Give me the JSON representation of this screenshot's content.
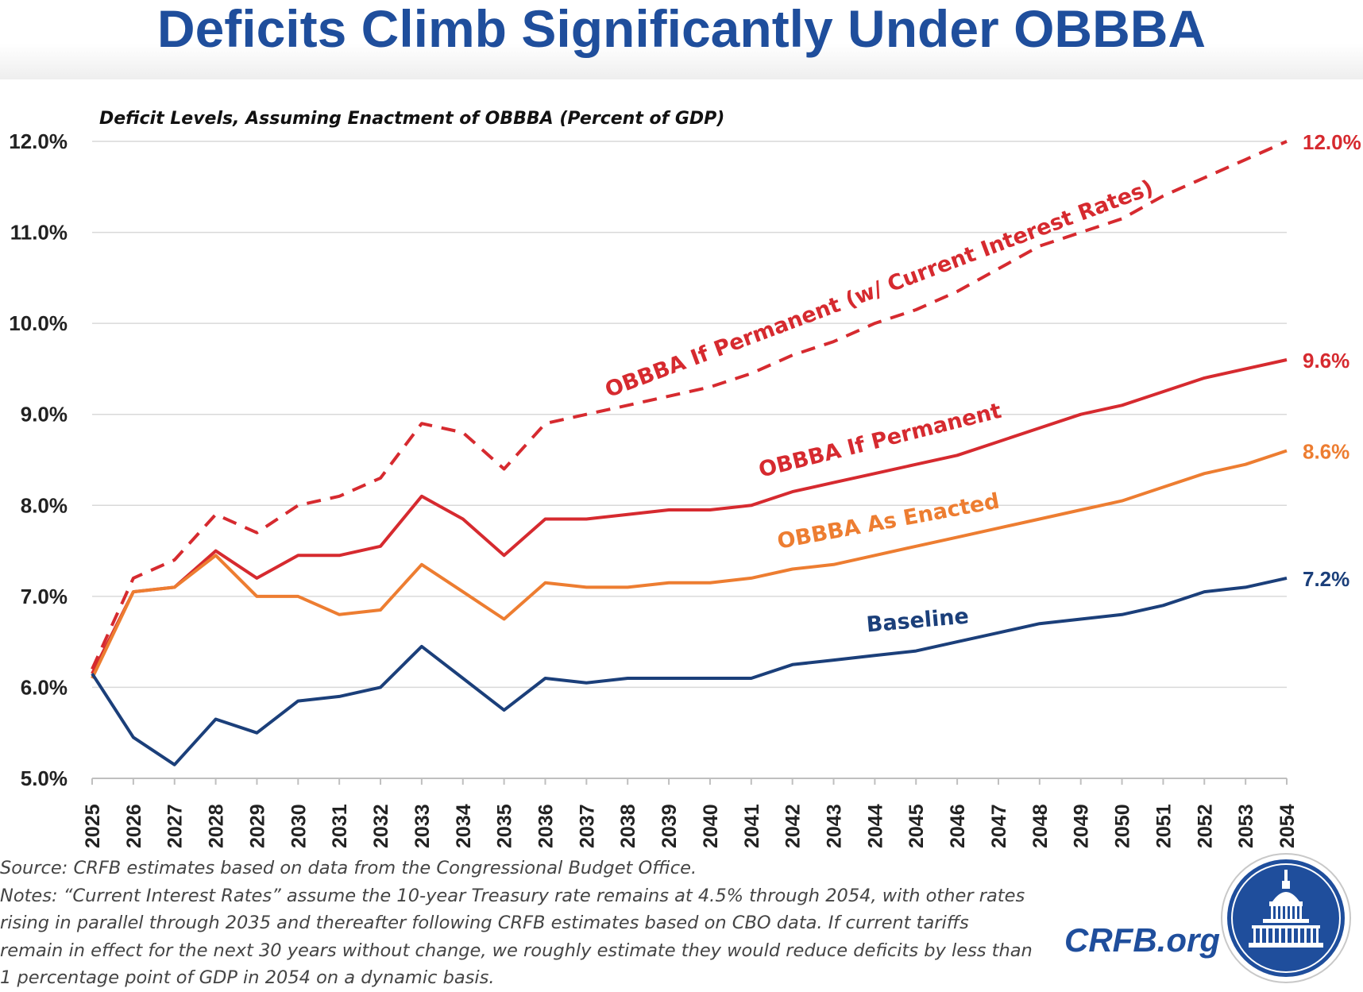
{
  "title": "Deficits Climb Significantly Under OBBBA",
  "chart_data": {
    "type": "line",
    "subtitle": "Deficit Levels, Assuming Enactment of OBBBA (Percent of GDP)",
    "x": [
      2025,
      2026,
      2027,
      2028,
      2029,
      2030,
      2031,
      2032,
      2033,
      2034,
      2035,
      2036,
      2037,
      2038,
      2039,
      2040,
      2041,
      2042,
      2043,
      2044,
      2045,
      2046,
      2047,
      2048,
      2049,
      2050,
      2051,
      2052,
      2053,
      2054
    ],
    "ylim": [
      5.0,
      12.0
    ],
    "yticks": [
      "5.0%",
      "6.0%",
      "7.0%",
      "8.0%",
      "9.0%",
      "10.0%",
      "11.0%",
      "12.0%"
    ],
    "grid": "horizontal",
    "series": [
      {
        "name": "OBBBA If Permanent (w/ Current Interest Rates)",
        "color": "#d62a2f",
        "style": "dashed",
        "end_label": "12.0%",
        "values": [
          6.2,
          7.2,
          7.4,
          7.9,
          7.7,
          8.0,
          8.1,
          8.3,
          8.9,
          8.8,
          8.4,
          8.9,
          9.0,
          9.1,
          9.2,
          9.3,
          9.45,
          9.65,
          9.8,
          10.0,
          10.15,
          10.35,
          10.6,
          10.85,
          11.0,
          11.15,
          11.4,
          11.6,
          11.8,
          12.0
        ]
      },
      {
        "name": "OBBBA If Permanent",
        "color": "#d62a2f",
        "style": "solid",
        "end_label": "9.6%",
        "values": [
          6.15,
          7.05,
          7.1,
          7.5,
          7.2,
          7.45,
          7.45,
          7.55,
          8.1,
          7.85,
          7.45,
          7.85,
          7.85,
          7.9,
          7.95,
          7.95,
          8.0,
          8.15,
          8.25,
          8.35,
          8.45,
          8.55,
          8.7,
          8.85,
          9.0,
          9.1,
          9.25,
          9.4,
          9.5,
          9.6
        ]
      },
      {
        "name": "OBBBA As Enacted",
        "color": "#ed7d31",
        "style": "solid",
        "end_label": "8.6%",
        "values": [
          6.1,
          7.05,
          7.1,
          7.45,
          7.0,
          7.0,
          6.8,
          6.85,
          7.35,
          7.05,
          6.75,
          7.15,
          7.1,
          7.1,
          7.15,
          7.15,
          7.2,
          7.3,
          7.35,
          7.45,
          7.55,
          7.65,
          7.75,
          7.85,
          7.95,
          8.05,
          8.2,
          8.35,
          8.45,
          8.6
        ]
      },
      {
        "name": "Baseline",
        "color": "#1b3f7a",
        "style": "solid",
        "end_label": "7.2%",
        "values": [
          6.15,
          5.45,
          5.15,
          5.65,
          5.5,
          5.85,
          5.9,
          6.0,
          6.45,
          6.1,
          5.75,
          6.1,
          6.05,
          6.1,
          6.1,
          6.1,
          6.1,
          6.25,
          6.3,
          6.35,
          6.4,
          6.5,
          6.6,
          6.7,
          6.75,
          6.8,
          6.9,
          7.05,
          7.1,
          7.2
        ]
      }
    ]
  },
  "footer": {
    "source": "Source: CRFB estimates based on data from the Congressional Budget Office.",
    "notes_1": "Notes: “Current Interest Rates” assume the 10-year Treasury rate remains at 4.5% through 2054, with other rates",
    "notes_2": "rising in parallel through 2035 and thereafter following CRFB estimates based on CBO data. If current tariffs",
    "notes_3": "remain in effect for the next 30 years without change, we roughly estimate they would reduce deficits by less than",
    "notes_4": "1 percentage point of GDP in 2054 on a dynamic basis."
  },
  "brand": "CRFB.org",
  "seal_icon": "capitol-dome-icon"
}
